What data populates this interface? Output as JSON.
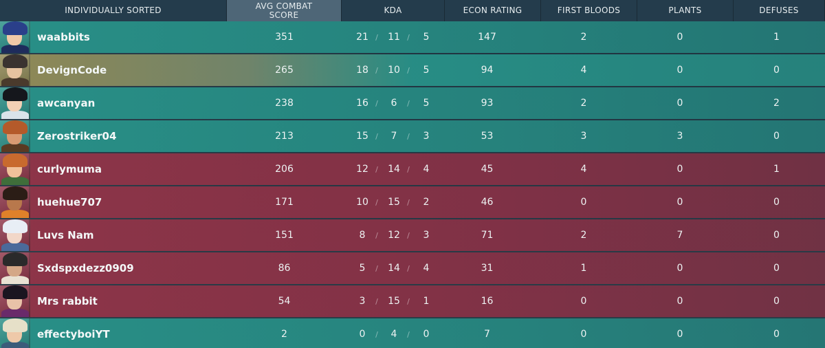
{
  "header": {
    "columns": [
      {
        "label": "INDIVIDUALLY SORTED",
        "sorted": false
      },
      {
        "label": "AVG COMBAT\nSCORE",
        "sorted": true
      },
      {
        "label": "KDA",
        "sorted": false
      },
      {
        "label": "ECON RATING",
        "sorted": false
      },
      {
        "label": "FIRST BLOODS",
        "sorted": false
      },
      {
        "label": "PLANTS",
        "sorted": false
      },
      {
        "label": "DEFUSES",
        "sorted": false
      }
    ]
  },
  "kda_separator": "/",
  "players": [
    {
      "name": "waabbits",
      "team": "teal",
      "acs": "351",
      "kills": "21",
      "deaths": "11",
      "assists": "5",
      "econ": "147",
      "first_bloods": "2",
      "plants": "0",
      "defuses": "1",
      "avatar": "agent-yoru-icon"
    },
    {
      "name": "DevignCode",
      "team": "self",
      "acs": "265",
      "kills": "18",
      "deaths": "10",
      "assists": "5",
      "econ": "94",
      "first_bloods": "4",
      "plants": "0",
      "defuses": "0",
      "avatar": "agent-chamber-icon"
    },
    {
      "name": "awcanyan",
      "team": "teal",
      "acs": "238",
      "kills": "16",
      "deaths": "6",
      "assists": "5",
      "econ": "93",
      "first_bloods": "2",
      "plants": "0",
      "defuses": "2",
      "avatar": "agent-sage-icon"
    },
    {
      "name": "Zerostriker04",
      "team": "teal",
      "acs": "213",
      "kills": "15",
      "deaths": "7",
      "assists": "3",
      "econ": "53",
      "first_bloods": "3",
      "plants": "3",
      "defuses": "0",
      "avatar": "agent-breach-icon"
    },
    {
      "name": "curlymuma",
      "team": "red",
      "acs": "206",
      "kills": "12",
      "deaths": "14",
      "assists": "4",
      "econ": "45",
      "first_bloods": "4",
      "plants": "0",
      "defuses": "1",
      "avatar": "agent-skye-icon"
    },
    {
      "name": "huehue707",
      "team": "red",
      "acs": "171",
      "kills": "10",
      "deaths": "15",
      "assists": "2",
      "econ": "46",
      "first_bloods": "0",
      "plants": "0",
      "defuses": "0",
      "avatar": "agent-raze-icon"
    },
    {
      "name": "Luvs Nam",
      "team": "red",
      "acs": "151",
      "kills": "8",
      "deaths": "12",
      "assists": "3",
      "econ": "71",
      "first_bloods": "2",
      "plants": "7",
      "defuses": "0",
      "avatar": "agent-jett-icon"
    },
    {
      "name": "Sxdspxdezz0909",
      "team": "red",
      "acs": "86",
      "kills": "5",
      "deaths": "14",
      "assists": "4",
      "econ": "31",
      "first_bloods": "1",
      "plants": "0",
      "defuses": "0",
      "avatar": "agent-cypher-icon"
    },
    {
      "name": "Mrs rabbit",
      "team": "red",
      "acs": "54",
      "kills": "3",
      "deaths": "15",
      "assists": "1",
      "econ": "16",
      "first_bloods": "0",
      "plants": "0",
      "defuses": "0",
      "avatar": "agent-reyna-icon"
    },
    {
      "name": "effectyboiYT",
      "team": "teal",
      "acs": "2",
      "kills": "0",
      "deaths": "4",
      "assists": "0",
      "econ": "7",
      "first_bloods": "0",
      "plants": "0",
      "defuses": "0",
      "avatar": "agent-sova-icon"
    }
  ],
  "colors": {
    "teal_row": "#289690",
    "red_row": "#963448",
    "self_highlight": "#968c55",
    "header_bg": "#243c4c",
    "sorted_header_bg": "#4e6677"
  }
}
